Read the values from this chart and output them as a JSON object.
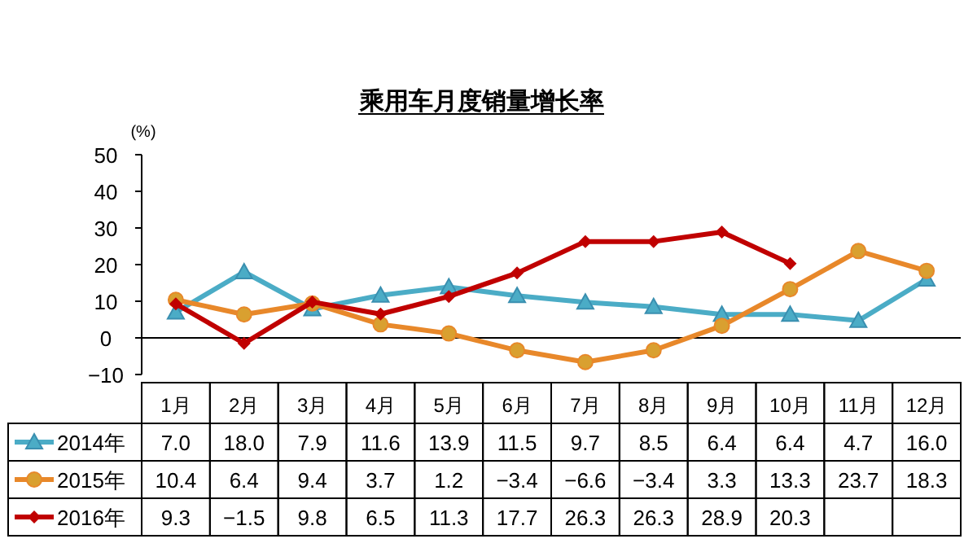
{
  "chart_data": {
    "type": "line",
    "title": "乘用车月度销量增长率",
    "ylabel": "(%)",
    "categories": [
      "1月",
      "2月",
      "3月",
      "4月",
      "5月",
      "6月",
      "7月",
      "8月",
      "9月",
      "10月",
      "11月",
      "12月"
    ],
    "ylim": [
      -10,
      50
    ],
    "yticks": [
      -10,
      0,
      10,
      20,
      30,
      40,
      50
    ],
    "legend": "bottom",
    "series": [
      {
        "name": "2014年",
        "color": "#4bacc6",
        "marker": "triangle",
        "values": [
          7.0,
          18.0,
          7.9,
          11.6,
          13.9,
          11.5,
          9.7,
          8.5,
          6.4,
          6.4,
          4.7,
          16.0
        ],
        "value_labels": [
          "7.0",
          "18.0",
          "7.9",
          "11.6",
          "13.9",
          "11.5",
          "9.7",
          "8.5",
          "6.4",
          "6.4",
          "4.7",
          "16.0"
        ]
      },
      {
        "name": "2015年",
        "color": "#e8882a",
        "marker": "circle",
        "values": [
          10.4,
          6.4,
          9.4,
          3.7,
          1.2,
          -3.4,
          -6.6,
          -3.4,
          3.3,
          13.3,
          23.7,
          18.3
        ],
        "value_labels": [
          "10.4",
          "6.4",
          "9.4",
          "3.7",
          "1.2",
          "−3.4",
          "−6.6",
          "−3.4",
          "3.3",
          "13.3",
          "23.7",
          "18.3"
        ]
      },
      {
        "name": "2016年",
        "color": "#c00000",
        "marker": "diamond",
        "values": [
          9.3,
          -1.5,
          9.8,
          6.5,
          11.3,
          17.7,
          26.3,
          26.3,
          28.9,
          20.3,
          null,
          null
        ],
        "value_labels": [
          "9.3",
          "−1.5",
          "9.8",
          "6.5",
          "11.3",
          "17.7",
          "26.3",
          "26.3",
          "28.9",
          "20.3",
          null,
          null
        ]
      }
    ]
  }
}
